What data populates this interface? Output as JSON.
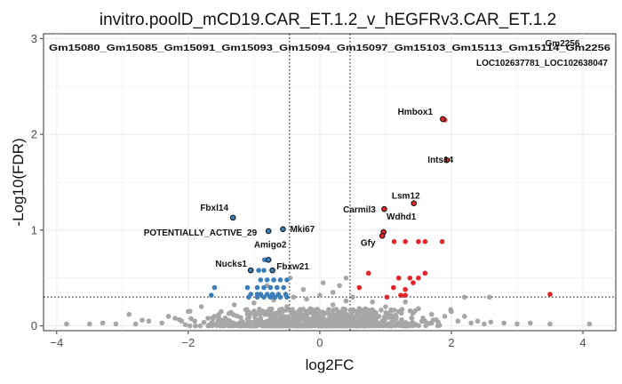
{
  "chart_data": {
    "type": "scatter",
    "title": "invitro.poolD_mCD19.CAR_ET.1.2_v_hEGFRv3.CAR_ET.1.2",
    "xlabel": "log2FC",
    "ylabel": "-Log10(FDR)",
    "xlim": [
      -4.2,
      4.5
    ],
    "ylim": [
      -0.05,
      3.05
    ],
    "x_ticks": [
      -4,
      -2,
      0,
      2,
      4
    ],
    "y_ticks": [
      0,
      1,
      2,
      3
    ],
    "grid": true,
    "legend": "none",
    "colors": {
      "background": "#ffffff",
      "grid": "#ebebeb",
      "not_significant": "#a6a6a6",
      "down": "#3a7fba",
      "up": "#e4262b",
      "labeled_point_outline": "#111111",
      "reference_line": "#000000"
    },
    "reference_lines": {
      "vertical_x": [
        -0.46,
        0.46
      ],
      "horizontal_y": 0.301
    },
    "labeled_points": [
      {
        "label": "Hmbox1",
        "x": 1.87,
        "y": 2.16,
        "group": "up"
      },
      {
        "label": "Ints14",
        "x": 1.93,
        "y": 1.73,
        "group": "up"
      },
      {
        "label": "Lsm12",
        "x": 1.43,
        "y": 1.28,
        "group": "up"
      },
      {
        "label": "Carmil3",
        "x": 0.98,
        "y": 1.22,
        "group": "up"
      },
      {
        "label": "Wdhd1",
        "x": 0.97,
        "y": 0.98,
        "group": "up"
      },
      {
        "label": "Gfy",
        "x": 0.95,
        "y": 0.94,
        "group": "up"
      },
      {
        "label": "Fbxl14",
        "x": -1.32,
        "y": 1.13,
        "group": "down"
      },
      {
        "label": "Mki67",
        "x": -0.56,
        "y": 1.01,
        "group": "down"
      },
      {
        "label": "POTENTIALLY_ACTIVE_29",
        "x": -0.78,
        "y": 0.99,
        "group": "down"
      },
      {
        "label": "Amigo2",
        "x": -0.78,
        "y": 0.69,
        "group": "down"
      },
      {
        "label": "Nucks1",
        "x": -1.05,
        "y": 0.58,
        "group": "down"
      },
      {
        "label": "Fbxw21",
        "x": -0.72,
        "y": 0.58,
        "group": "down"
      }
    ],
    "top_label_rows": [
      "Gm15080_Gm15085_Gm15091_Gm15093_Gm15094_Gm15097_Gm15103_Gm15113_Gm15114_Gm2256",
      "LOC102637781_LOC102638047"
    ],
    "top_right_labels": [
      "Gm2256",
      "LOC102637781_LOC102638047"
    ],
    "significant_points": {
      "up": [
        [
          1.9,
          2.15
        ],
        [
          1.93,
          1.73
        ],
        [
          1.43,
          1.28
        ],
        [
          0.98,
          1.22
        ],
        [
          0.97,
          0.98
        ],
        [
          0.95,
          0.94
        ],
        [
          1.3,
          0.88
        ],
        [
          1.5,
          0.88
        ],
        [
          1.6,
          0.88
        ],
        [
          1.86,
          0.88
        ],
        [
          1.13,
          0.88
        ],
        [
          0.74,
          0.55
        ],
        [
          1.2,
          0.5
        ],
        [
          1.37,
          0.5
        ],
        [
          1.5,
          0.5
        ],
        [
          1.12,
          0.4
        ],
        [
          1.3,
          0.38
        ],
        [
          1.42,
          0.45
        ],
        [
          1.6,
          0.55
        ],
        [
          0.6,
          0.4
        ],
        [
          1.02,
          0.3
        ],
        [
          1.23,
          0.32
        ],
        [
          1.3,
          0.32
        ],
        [
          3.5,
          0.33
        ]
      ],
      "down": [
        [
          -1.32,
          1.13
        ],
        [
          -0.56,
          1.01
        ],
        [
          -0.78,
          0.99
        ],
        [
          -0.78,
          0.69
        ],
        [
          -0.84,
          0.69
        ],
        [
          -1.05,
          0.58
        ],
        [
          -0.93,
          0.58
        ],
        [
          -0.72,
          0.58
        ],
        [
          -0.85,
          0.58
        ],
        [
          -1.6,
          0.4
        ],
        [
          -1.65,
          0.32
        ],
        [
          -0.9,
          0.48
        ],
        [
          -0.8,
          0.48
        ],
        [
          -0.7,
          0.48
        ],
        [
          -0.6,
          0.48
        ],
        [
          -0.5,
          0.48
        ],
        [
          -1.1,
          0.4
        ],
        [
          -0.95,
          0.4
        ],
        [
          -0.85,
          0.4
        ],
        [
          -0.75,
          0.4
        ],
        [
          -0.65,
          0.4
        ],
        [
          -0.55,
          0.4
        ],
        [
          -1.05,
          0.33
        ],
        [
          -0.95,
          0.33
        ],
        [
          -0.9,
          0.33
        ],
        [
          -0.8,
          0.33
        ],
        [
          -0.72,
          0.33
        ],
        [
          -0.63,
          0.33
        ],
        [
          -0.52,
          0.33
        ],
        [
          -1.08,
          0.3
        ],
        [
          -0.95,
          0.3
        ],
        [
          -0.85,
          0.3
        ],
        [
          -0.75,
          0.3
        ],
        [
          -0.68,
          0.3
        ],
        [
          -0.6,
          0.3
        ],
        [
          -0.5,
          0.3
        ]
      ]
    },
    "nonsignificant_points": [
      [
        -3.85,
        0.02
      ],
      [
        -3.5,
        0.02
      ],
      [
        -3.3,
        0.03
      ],
      [
        -3.1,
        0.02
      ],
      [
        -2.9,
        0.12
      ],
      [
        -2.8,
        0.02
      ],
      [
        -2.6,
        0.05
      ],
      [
        -2.4,
        0.03
      ],
      [
        -2.3,
        0.1
      ],
      [
        -2.1,
        0.05
      ],
      [
        -2.0,
        0.15
      ],
      [
        -1.9,
        0.05
      ],
      [
        -1.8,
        0.2
      ],
      [
        -1.7,
        0.08
      ],
      [
        -1.6,
        0.02
      ],
      [
        -1.5,
        0.15
      ],
      [
        -1.4,
        0.06
      ],
      [
        -1.3,
        0.22
      ],
      [
        -1.2,
        0.03
      ],
      [
        -1.1,
        0.12
      ],
      [
        -1.0,
        0.24
      ],
      [
        -0.9,
        0.05
      ],
      [
        -0.8,
        0.15
      ],
      [
        -0.7,
        0.27
      ],
      [
        -0.6,
        0.08
      ],
      [
        -0.5,
        0.2
      ],
      [
        -0.4,
        0.3
      ],
      [
        -0.3,
        0.1
      ],
      [
        -0.2,
        0.28
      ],
      [
        -0.1,
        0.15
      ],
      [
        0.0,
        0.32
      ],
      [
        0.1,
        0.05
      ],
      [
        0.2,
        0.22
      ],
      [
        0.3,
        0.42
      ],
      [
        0.4,
        0.12
      ],
      [
        0.5,
        0.3
      ],
      [
        0.6,
        0.18
      ],
      [
        0.7,
        0.08
      ],
      [
        0.8,
        0.25
      ],
      [
        0.9,
        0.1
      ],
      [
        1.0,
        0.2
      ],
      [
        1.1,
        0.05
      ],
      [
        1.2,
        0.15
      ],
      [
        1.3,
        0.25
      ],
      [
        1.4,
        0.08
      ],
      [
        1.5,
        0.18
      ],
      [
        1.6,
        0.05
      ],
      [
        1.7,
        0.12
      ],
      [
        1.8,
        0.04
      ],
      [
        1.9,
        0.1
      ],
      [
        2.0,
        0.15
      ],
      [
        2.1,
        0.05
      ],
      [
        2.2,
        0.1
      ],
      [
        2.3,
        0.03
      ],
      [
        2.4,
        0.05
      ],
      [
        2.5,
        0.02
      ],
      [
        2.6,
        0.04
      ],
      [
        2.8,
        0.03
      ],
      [
        3.0,
        0.02
      ],
      [
        3.2,
        0.03
      ],
      [
        3.5,
        0.02
      ],
      [
        4.1,
        0.02
      ],
      [
        -0.8,
        0.42
      ],
      [
        -0.45,
        0.5
      ],
      [
        0.05,
        0.45
      ],
      [
        0.2,
        0.35
      ],
      [
        0.4,
        0.5
      ],
      [
        0.4,
        0.26
      ],
      [
        0.55,
        0.05
      ],
      [
        2.2,
        0.3
      ],
      [
        2.58,
        0.3
      ],
      [
        -1.6,
        0.1
      ],
      [
        -2.7,
        0.06
      ],
      [
        -2.2,
        0.08
      ],
      [
        -0.25,
        0.38
      ],
      [
        0.15,
        0.12
      ],
      [
        0.65,
        0.1
      ],
      [
        0.85,
        0.14
      ]
    ]
  }
}
